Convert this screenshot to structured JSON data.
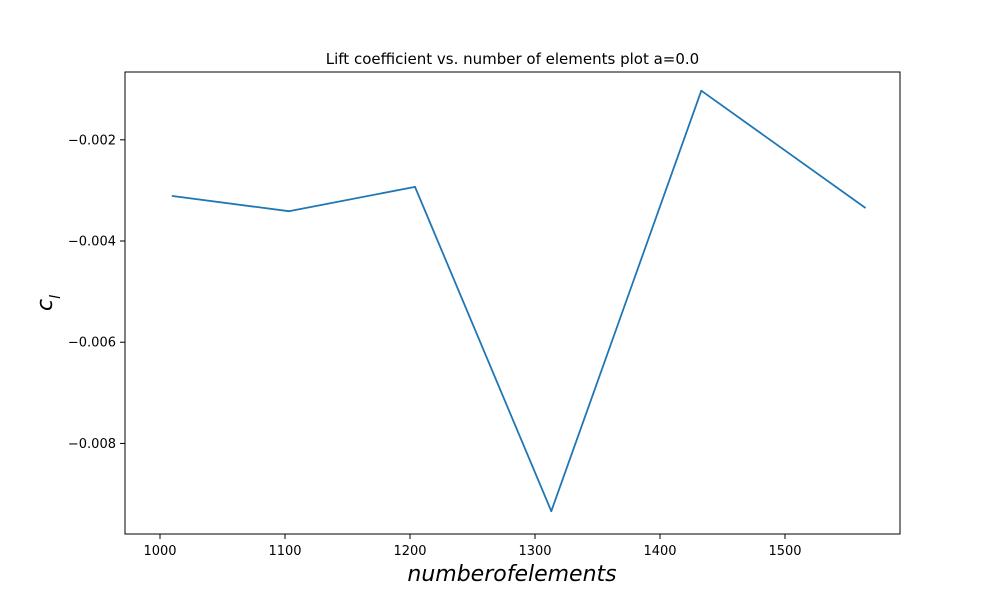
{
  "chart_data": {
    "type": "line",
    "title": "Lift coefficient vs. number of elements plot a=0.0",
    "xlabel": "numberofelements",
    "ylabel": "c",
    "ylabel_subscript": "l",
    "xlim": [
      972,
      1592
    ],
    "ylim": [
      -0.00979,
      -0.00066
    ],
    "xticks": [
      1000,
      1100,
      1200,
      1300,
      1400,
      1500
    ],
    "xtick_labels": [
      "1000",
      "1100",
      "1200",
      "1300",
      "1400",
      "1500"
    ],
    "yticks": [
      -0.002,
      -0.004,
      -0.006,
      -0.008
    ],
    "ytick_labels": [
      "−0.002",
      "−0.004",
      "−0.006",
      "−0.008"
    ],
    "grid": false,
    "series": [
      {
        "color": "#1f77b4",
        "x": [
          1010,
          1103,
          1204,
          1313,
          1433,
          1564
        ],
        "y": [
          -0.00311,
          -0.00341,
          -0.00293,
          -0.00934,
          -0.00103,
          -0.00334
        ]
      }
    ]
  }
}
